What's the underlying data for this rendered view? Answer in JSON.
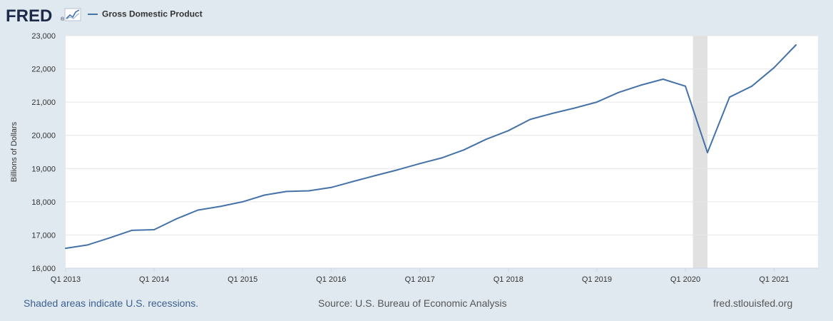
{
  "header": {
    "logo_text": "FRED",
    "logo_registered": "®"
  },
  "colors": {
    "background": "#e1e9f0",
    "plot_background": "#ffffff",
    "series_line": "#4572a7",
    "recession_shade": "#e1e1e1",
    "gridline": "#e6e6e6"
  },
  "footer": {
    "recession_note": "Shaded areas indicate U.S. recessions.",
    "source": "Source: U.S. Bureau of Economic Analysis",
    "site": "fred.stlouisfed.org"
  },
  "chart_data": {
    "type": "line",
    "title": "",
    "xlabel": "",
    "ylabel": "Billions of Dollars",
    "ylim": [
      16000,
      23000
    ],
    "yticks": [
      16000,
      17000,
      18000,
      19000,
      20000,
      21000,
      22000,
      23000
    ],
    "ytick_labels": [
      "16,000",
      "17,000",
      "18,000",
      "19,000",
      "20,000",
      "21,000",
      "22,000",
      "23,000"
    ],
    "xlim": [
      "2013-01-01",
      "2021-07-01"
    ],
    "xticks": [
      "2013-01-01",
      "2014-01-01",
      "2015-01-01",
      "2016-01-01",
      "2017-01-01",
      "2018-01-01",
      "2019-01-01",
      "2020-01-01",
      "2021-01-01"
    ],
    "xtick_labels": [
      "Q1 2013",
      "Q1 2014",
      "Q1 2015",
      "Q1 2016",
      "Q1 2017",
      "Q1 2018",
      "Q1 2019",
      "Q1 2020",
      "Q1 2021"
    ],
    "grid": true,
    "legend": "top-left",
    "recessions": [
      {
        "start": "2020-02-01",
        "end": "2020-04-01"
      }
    ],
    "series": [
      {
        "name": "Gross Domestic Product",
        "x": [
          "2013-01-01",
          "2013-04-01",
          "2013-07-01",
          "2013-10-01",
          "2014-01-01",
          "2014-04-01",
          "2014-07-01",
          "2014-10-01",
          "2015-01-01",
          "2015-04-01",
          "2015-07-01",
          "2015-10-01",
          "2016-01-01",
          "2016-04-01",
          "2016-07-01",
          "2016-10-01",
          "2017-01-01",
          "2017-04-01",
          "2017-07-01",
          "2017-10-01",
          "2018-01-01",
          "2018-04-01",
          "2018-07-01",
          "2018-10-01",
          "2019-01-01",
          "2019-04-01",
          "2019-07-01",
          "2019-10-01",
          "2020-01-01",
          "2020-04-01",
          "2020-07-01",
          "2020-10-01",
          "2021-01-01",
          "2021-04-01"
        ],
        "values": [
          16600,
          16700,
          16910,
          17140,
          17160,
          17480,
          17750,
          17860,
          18000,
          18200,
          18310,
          18330,
          18430,
          18610,
          18790,
          18960,
          19150,
          19320,
          19560,
          19880,
          20140,
          20480,
          20660,
          20820,
          21000,
          21290,
          21510,
          21690,
          21480,
          19480,
          21150,
          21480,
          22040,
          22720
        ]
      }
    ]
  }
}
